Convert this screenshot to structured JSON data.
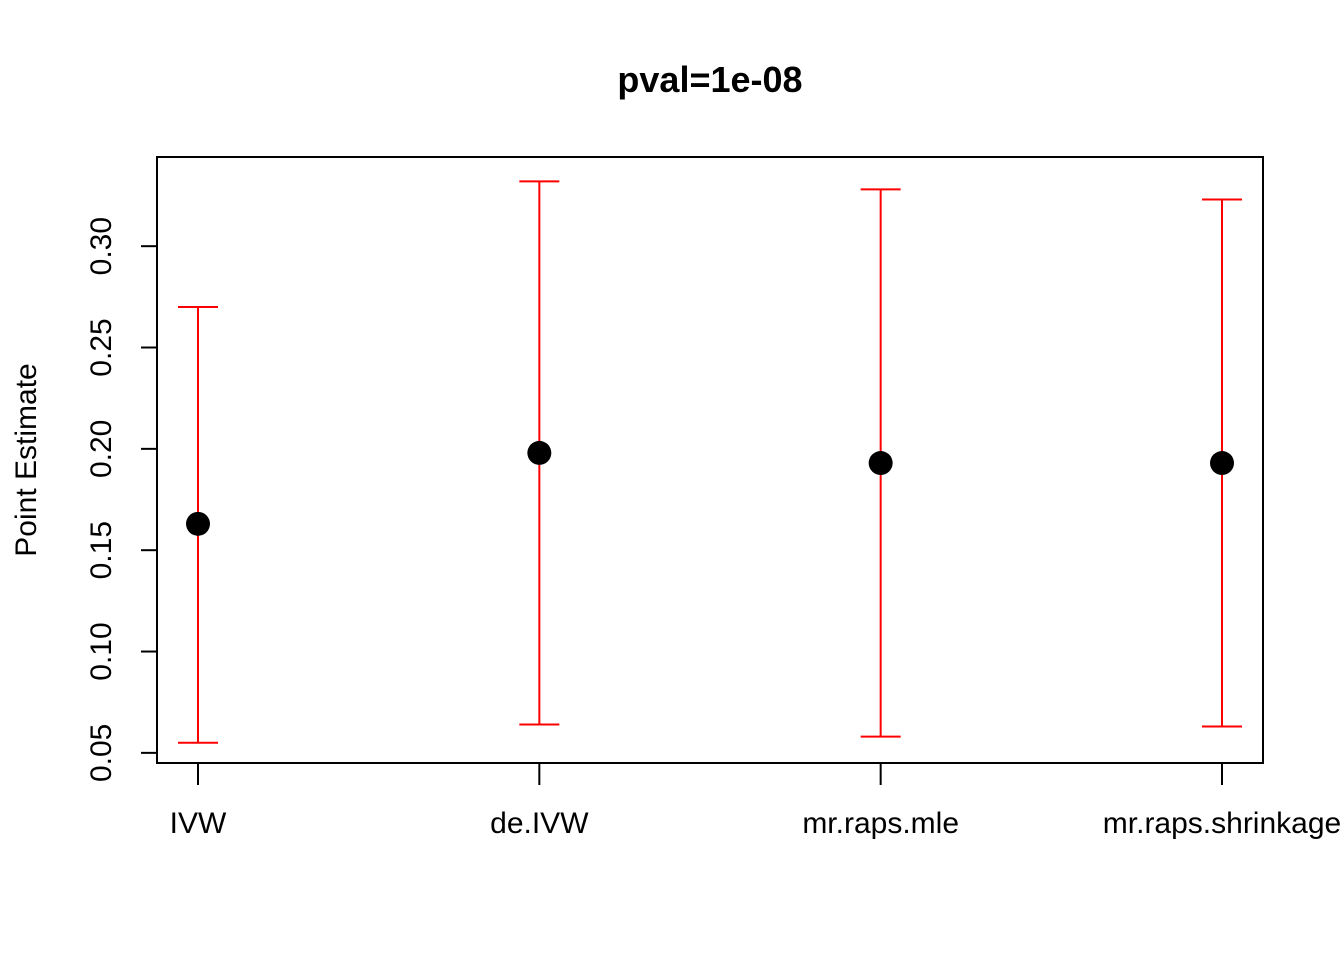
{
  "chart_data": {
    "type": "scatter",
    "title": "pval=1e-08",
    "xlabel": "",
    "ylabel": "Point Estimate",
    "categories": [
      "IVW",
      "de.IVW",
      "mr.raps.mle",
      "mr.raps.shrinkage"
    ],
    "estimates": [
      0.163,
      0.198,
      0.193,
      0.193
    ],
    "lower": [
      0.055,
      0.064,
      0.058,
      0.063
    ],
    "upper": [
      0.27,
      0.332,
      0.328,
      0.323
    ],
    "yticks": [
      0.05,
      0.1,
      0.15,
      0.2,
      0.25,
      0.3
    ],
    "ytick_labels": [
      "0.05",
      "0.10",
      "0.15",
      "0.20",
      "0.25",
      "0.30"
    ],
    "ylim": [
      0.045,
      0.344
    ],
    "grid": false,
    "legend": "none",
    "colors": {
      "error_bar": "#ff0000",
      "point": "#000000",
      "axis": "#000000"
    }
  }
}
